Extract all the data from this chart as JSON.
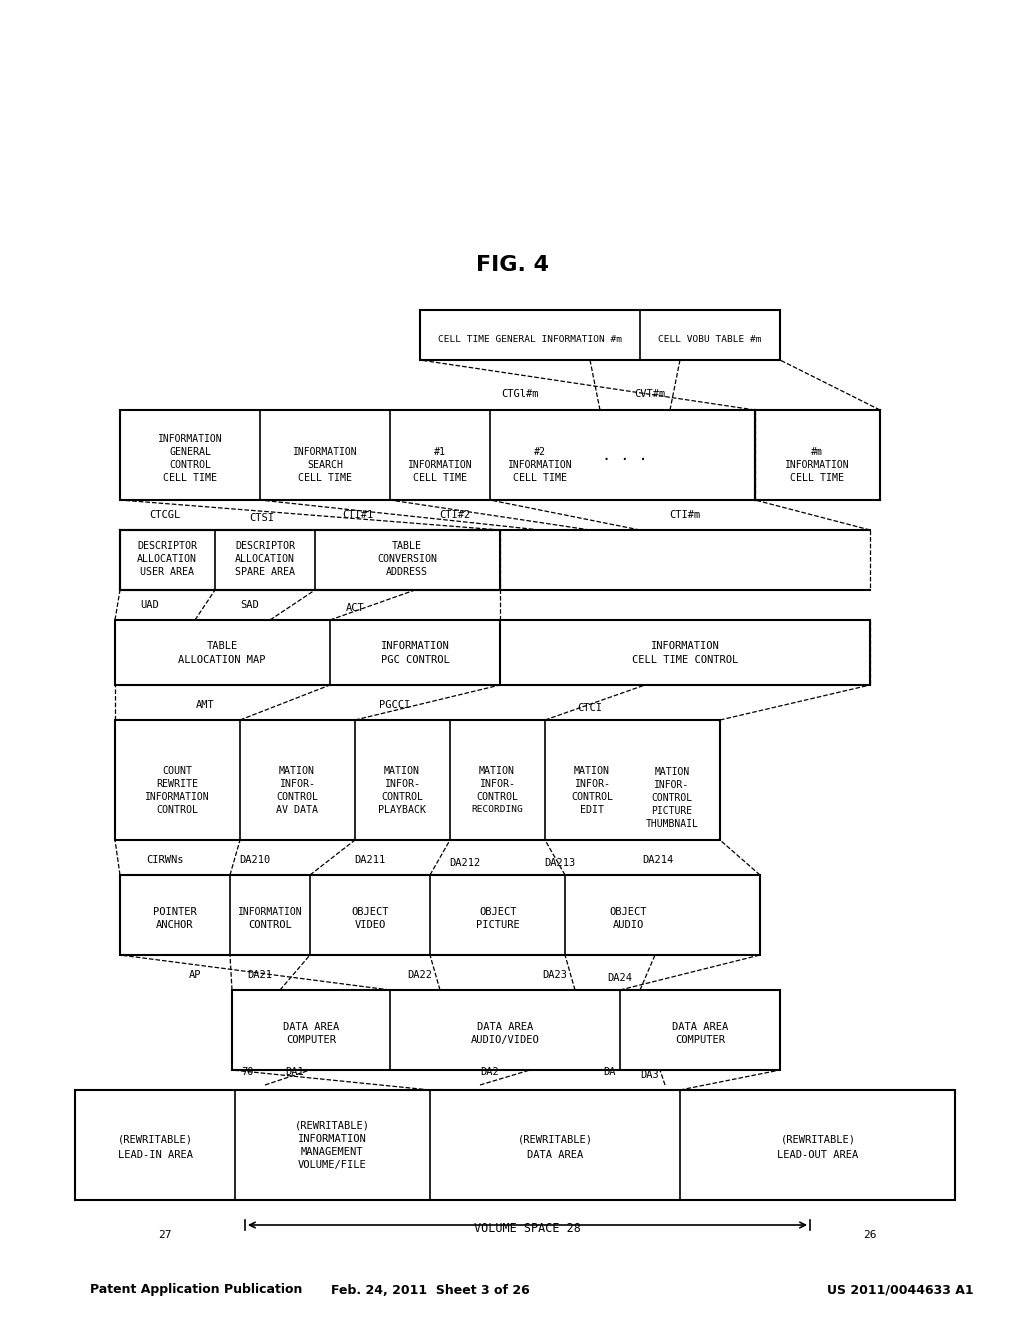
{
  "title": "FIG. 4",
  "header_left": "Patent Application Publication",
  "header_mid": "Feb. 24, 2011  Sheet 3 of 26",
  "header_right": "US 2011/0044633 A1",
  "bg_color": "#ffffff",
  "text_color": "#000000"
}
